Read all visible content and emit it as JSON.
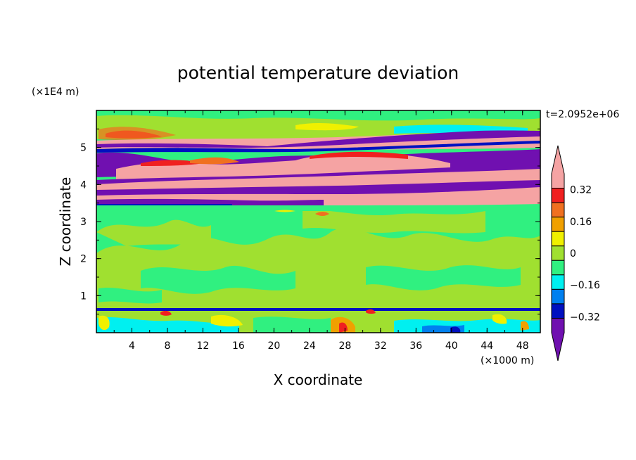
{
  "chart_data": {
    "type": "heatmap",
    "title": "potential temperature deviation",
    "xlabel": "X coordinate",
    "ylabel": "Z coordinate",
    "x_unit": "(×1000 m)",
    "y_unit": "(×1E4 m)",
    "time_label": "t=2.0952e+06",
    "xlim": [
      0,
      50
    ],
    "ylim": [
      0,
      6
    ],
    "x_ticks": [
      "4",
      "8",
      "12",
      "16",
      "20",
      "24",
      "28",
      "32",
      "36",
      "40",
      "44",
      "48"
    ],
    "y_ticks": [
      "1",
      "2",
      "3",
      "4",
      "5"
    ],
    "colorbar": {
      "labels": [
        "0.32",
        "0.16",
        "0",
        "−0.16",
        "−0.32"
      ],
      "label_values": [
        0.32,
        0.16,
        0,
        -0.16,
        -0.32
      ],
      "levels": [
        0.4,
        0.32,
        0.24,
        0.16,
        0.08,
        0,
        -0.08,
        -0.16,
        -0.24,
        -0.32,
        -0.4
      ],
      "colors": [
        "#F5A3A3",
        "#F02020",
        "#F07020",
        "#F0A000",
        "#F0F000",
        "#A0E030",
        "#30F080",
        "#00F0F0",
        "#0080F0",
        "#0010C0",
        "#7010B0"
      ],
      "extend": "both"
    },
    "layers": [
      {
        "z_range": [
          5.0,
          5.9
        ],
        "description_value": 0.04
      },
      {
        "z_range": [
          4.9,
          5.1
        ],
        "description_value": -0.4
      },
      {
        "z_range": [
          4.4,
          4.9
        ],
        "description_value": 0.4
      },
      {
        "z_range": [
          4.2,
          4.5
        ],
        "description_value": -0.4
      },
      {
        "z_range": [
          3.9,
          4.2
        ],
        "description_value": 0.4
      },
      {
        "z_range": [
          3.7,
          3.9
        ],
        "description_value": -0.4
      },
      {
        "z_range": [
          3.5,
          3.7
        ],
        "description_value": 0.4
      },
      {
        "z_range": [
          3.3,
          3.5
        ],
        "description_value": -0.4
      },
      {
        "z_range": [
          0.6,
          3.3
        ],
        "description_value": 0.0
      },
      {
        "z_range": [
          0.0,
          0.6
        ],
        "description_value": -0.12
      }
    ]
  }
}
